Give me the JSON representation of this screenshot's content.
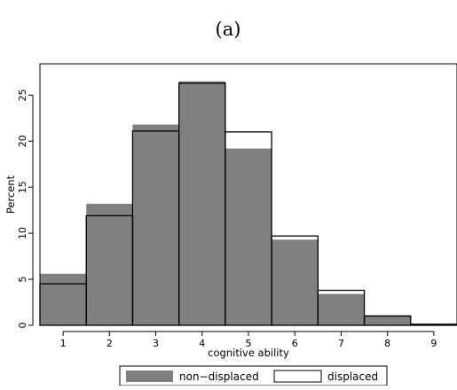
{
  "panel_label": "(a)",
  "chart_data": {
    "type": "bar",
    "title": "",
    "xlabel": "cognitive ability",
    "ylabel": "Percent",
    "categories": [
      "1",
      "2",
      "3",
      "4",
      "5",
      "6",
      "7",
      "8",
      "9"
    ],
    "x": [
      1,
      2,
      3,
      4,
      5,
      6,
      7,
      8,
      9
    ],
    "series": [
      {
        "name": "non−displaced",
        "values": [
          5.6,
          13.2,
          21.8,
          26.5,
          19.2,
          9.3,
          3.4,
          1.1,
          0.2
        ]
      },
      {
        "name": "displaced",
        "values": [
          4.5,
          11.9,
          21.1,
          26.3,
          21.0,
          9.7,
          3.8,
          1.0,
          0.1
        ]
      }
    ],
    "xlim": [
      0.5,
      9.5
    ],
    "ylim": [
      0,
      28.4
    ],
    "yticks": [
      0,
      5,
      10,
      15,
      20,
      25
    ],
    "grid": false,
    "legend": "bottom-center"
  },
  "colors": {
    "non_displaced_fill": "#808080",
    "displaced_outline": "#000000",
    "axis": "#000000"
  }
}
